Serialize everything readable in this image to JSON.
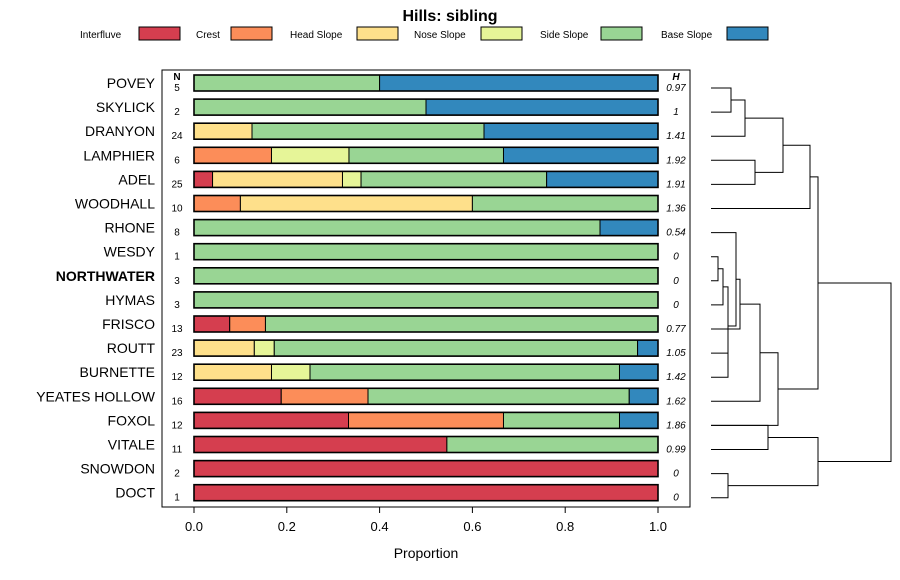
{
  "chart_data": {
    "type": "bar",
    "orientation": "horizontal-stacked",
    "title": "Hills: sibling",
    "xlabel": "Proportion",
    "ylabel": "",
    "xlim": [
      0,
      1
    ],
    "xticks": [
      "0.0",
      "0.2",
      "0.4",
      "0.6",
      "0.8",
      "1.0"
    ],
    "n_header": "N",
    "h_header": "H",
    "legend_position": "top",
    "legend": [
      {
        "name": "Interfluve",
        "color": "#d53e4f"
      },
      {
        "name": "Crest",
        "color": "#fc8d59"
      },
      {
        "name": "Head Slope",
        "color": "#fee08b"
      },
      {
        "name": "Nose Slope",
        "color": "#e6f598"
      },
      {
        "name": "Side Slope",
        "color": "#99d594"
      },
      {
        "name": "Base Slope",
        "color": "#3288bd"
      }
    ],
    "categories": [
      "POVEY",
      "SKYLICK",
      "DRANYON",
      "LAMPHIER",
      "ADEL",
      "WOODHALL",
      "RHONE",
      "WESDY",
      "NORTHWATER",
      "HYMAS",
      "FRISCO",
      "ROUTT",
      "BURNETTE",
      "YEATES HOLLOW",
      "FOXOL",
      "VITALE",
      "SNOWDON",
      "DOCT"
    ],
    "highlighted": "NORTHWATER",
    "n": [
      "5",
      "2",
      "24",
      "6",
      "25",
      "10",
      "8",
      "1",
      "3",
      "3",
      "13",
      "23",
      "12",
      "16",
      "12",
      "11",
      "2",
      "1"
    ],
    "h": [
      "0.97",
      "1",
      "1.41",
      "1.92",
      "1.91",
      "1.36",
      "0.54",
      "0",
      "0",
      "0",
      "0.77",
      "1.05",
      "1.42",
      "1.62",
      "1.86",
      "0.99",
      "0",
      "0"
    ],
    "series": [
      {
        "name": "Interfluve",
        "values": [
          0,
          0,
          0,
          0,
          0.04,
          0,
          0,
          0,
          0,
          0,
          0.077,
          0,
          0,
          0.188,
          0.333,
          0.545,
          1,
          1
        ]
      },
      {
        "name": "Crest",
        "values": [
          0,
          0,
          0,
          0.167,
          0,
          0.1,
          0,
          0,
          0,
          0,
          0.077,
          0,
          0,
          0.187,
          0.334,
          0,
          0,
          0
        ]
      },
      {
        "name": "Head Slope",
        "values": [
          0,
          0,
          0.125,
          0,
          0.28,
          0.5,
          0,
          0,
          0,
          0,
          0,
          0.13,
          0.167,
          0,
          0,
          0,
          0,
          0
        ]
      },
      {
        "name": "Nose Slope",
        "values": [
          0,
          0,
          0,
          0.167,
          0.04,
          0,
          0,
          0,
          0,
          0,
          0,
          0.043,
          0.083,
          0,
          0,
          0,
          0,
          0
        ]
      },
      {
        "name": "Side Slope",
        "values": [
          0.4,
          0.5,
          0.5,
          0.333,
          0.4,
          0.4,
          0.875,
          1,
          1,
          1,
          0.846,
          0.783,
          0.667,
          0.563,
          0.25,
          0.455,
          0,
          0
        ]
      },
      {
        "name": "Base Slope",
        "values": [
          0.6,
          0.5,
          0.375,
          0.333,
          0.24,
          0,
          0.125,
          0,
          0,
          0,
          0,
          0.044,
          0.083,
          0.062,
          0.083,
          0,
          0,
          0
        ]
      }
    ]
  }
}
